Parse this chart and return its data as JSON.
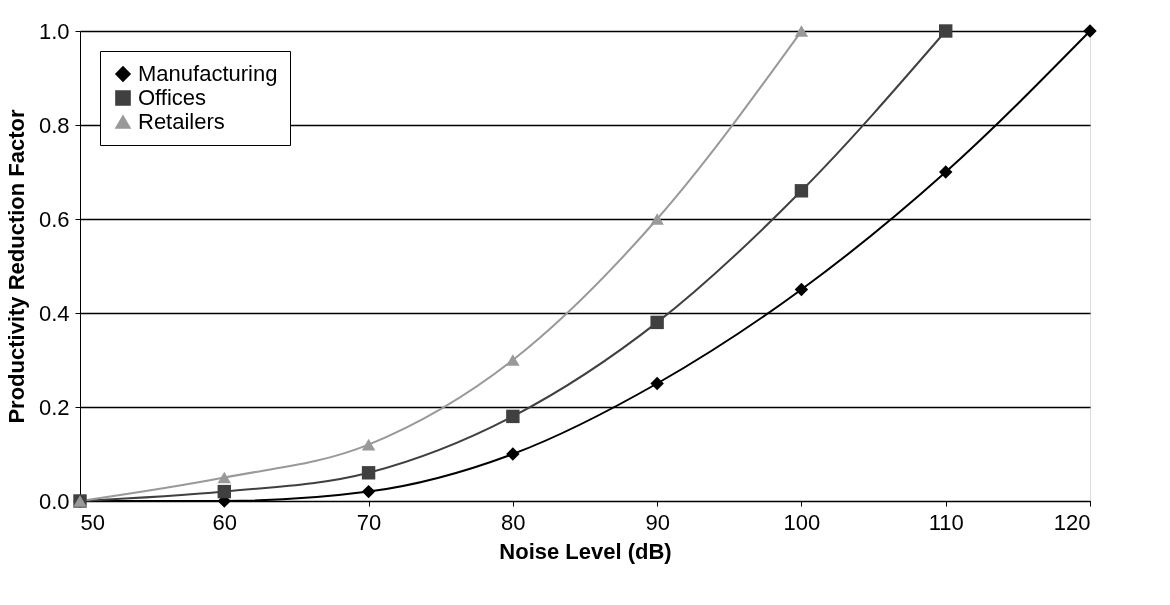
{
  "chart_data": {
    "type": "line",
    "xlabel": "Noise Level (dB)",
    "ylabel": "Productivity Reduction Factor",
    "x": [
      50,
      60,
      70,
      80,
      90,
      100,
      110,
      120
    ],
    "series": [
      {
        "name": "Manufacturing",
        "color": "#000000",
        "marker": "diamond",
        "values": [
          0,
          0,
          0.02,
          0.1,
          0.25,
          0.45,
          0.7,
          1.0
        ]
      },
      {
        "name": "Offices",
        "color": "#404040",
        "marker": "square",
        "values": [
          0,
          0.02,
          0.06,
          0.18,
          0.38,
          0.66,
          1.0,
          null
        ]
      },
      {
        "name": "Retailers",
        "color": "#999999",
        "marker": "triangle",
        "values": [
          0,
          0.05,
          0.12,
          0.3,
          0.6,
          1.0,
          null,
          null
        ]
      }
    ],
    "xlim": [
      50,
      120
    ],
    "xticks": [
      50,
      60,
      70,
      80,
      90,
      100,
      110,
      120
    ],
    "ylim": [
      0,
      1.0
    ],
    "yticks": [
      {
        "value": 0,
        "label": "0.0"
      },
      {
        "value": 0.2,
        "label": "0.2"
      },
      {
        "value": 0.4,
        "label": "0.4"
      },
      {
        "value": 0.6,
        "label": "0.6"
      },
      {
        "value": 0.8,
        "label": "0.8"
      },
      {
        "value": 1.0,
        "label": "1.0"
      }
    ],
    "grid": "y",
    "legend": "top left"
  }
}
